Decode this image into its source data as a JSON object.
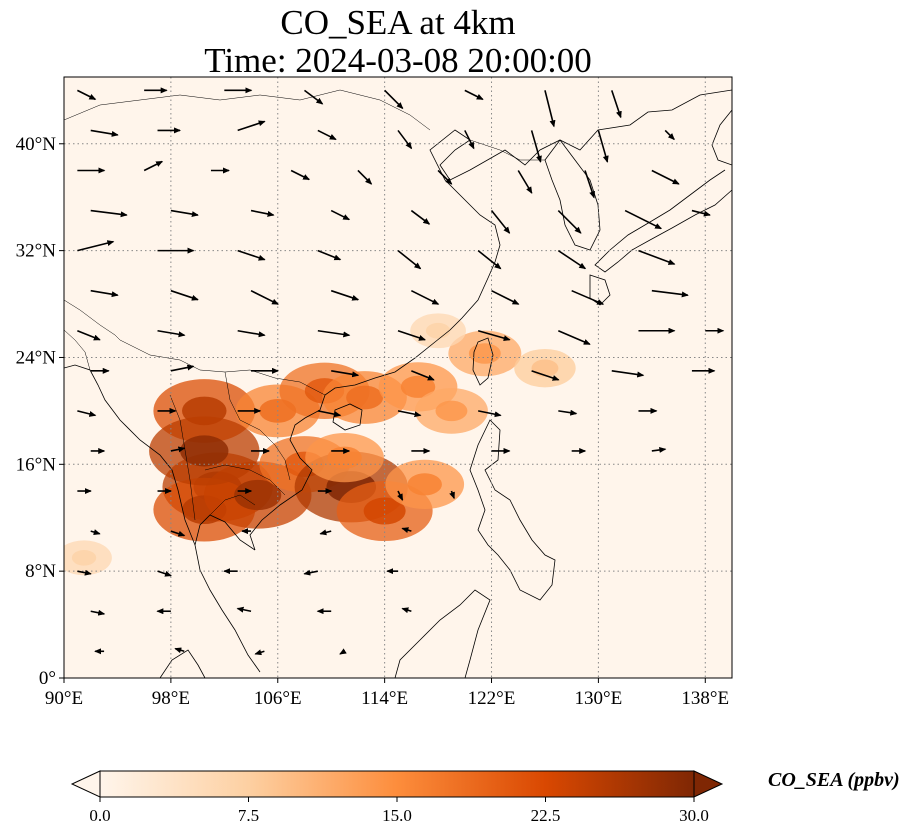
{
  "title": {
    "line1": "CO_SEA at 4km",
    "line2": "Time: 2024-03-08 20:00:00"
  },
  "map": {
    "extent": {
      "lon": [
        90,
        140
      ],
      "lat": [
        0,
        45
      ]
    },
    "lon_ticks": [
      {
        "value": 90,
        "label": "90°E"
      },
      {
        "value": 98,
        "label": "98°E"
      },
      {
        "value": 106,
        "label": "106°E"
      },
      {
        "value": 114,
        "label": "114°E"
      },
      {
        "value": 122,
        "label": "122°E"
      },
      {
        "value": 130,
        "label": "130°E"
      },
      {
        "value": 138,
        "label": "138°E"
      }
    ],
    "lat_ticks": [
      {
        "value": 0,
        "label": "0°"
      },
      {
        "value": 8,
        "label": "8°N"
      },
      {
        "value": 16,
        "label": "16°N"
      },
      {
        "value": 24,
        "label": "24°N"
      },
      {
        "value": 32,
        "label": "32°N"
      },
      {
        "value": 40,
        "label": "40°N"
      }
    ],
    "gridlines": true,
    "background_color": "#fff5eb"
  },
  "chart_data": {
    "type": "heatmap",
    "variable": "CO_SEA",
    "level": "4km",
    "time": "2024-03-08 20:00:00",
    "colorbar": {
      "label": "CO_SEA (ppbv)",
      "min": 0.0,
      "max": 30.0,
      "ticks": [
        "0.0",
        "7.5",
        "15.0",
        "22.5",
        "30.0"
      ],
      "colormap": [
        "#fff5eb",
        "#fdd0a2",
        "#fd8d3c",
        "#d94801",
        "#7f2704"
      ],
      "extend": "both"
    },
    "plumes": [
      {
        "lon": 101.5,
        "lat": 14.3,
        "value": 25
      },
      {
        "lon": 100.5,
        "lat": 12.6,
        "value": 22
      },
      {
        "lon": 104.5,
        "lat": 13.7,
        "value": 24
      },
      {
        "lon": 108.0,
        "lat": 16.0,
        "value": 18
      },
      {
        "lon": 111.5,
        "lat": 14.3,
        "value": 26
      },
      {
        "lon": 114.0,
        "lat": 12.5,
        "value": 20
      },
      {
        "lon": 111.0,
        "lat": 16.5,
        "value": 14
      },
      {
        "lon": 100.5,
        "lat": 20.0,
        "value": 22
      },
      {
        "lon": 100.5,
        "lat": 17.0,
        "value": 25
      },
      {
        "lon": 106.0,
        "lat": 20.0,
        "value": 16
      },
      {
        "lon": 109.5,
        "lat": 21.5,
        "value": 18
      },
      {
        "lon": 112.5,
        "lat": 21.0,
        "value": 16
      },
      {
        "lon": 116.5,
        "lat": 21.8,
        "value": 14
      },
      {
        "lon": 119.0,
        "lat": 20.0,
        "value": 12
      },
      {
        "lon": 121.5,
        "lat": 24.3,
        "value": 12
      },
      {
        "lon": 126.0,
        "lat": 23.2,
        "value": 8
      },
      {
        "lon": 117.0,
        "lat": 14.5,
        "value": 14
      },
      {
        "lon": 91.5,
        "lat": 9.0,
        "value": 6
      },
      {
        "lon": 118.0,
        "lat": 26.0,
        "value": 6
      }
    ],
    "wind_vectors": [
      {
        "lon": 91,
        "lat": 44,
        "u": 2,
        "v": -1
      },
      {
        "lon": 96,
        "lat": 44,
        "u": 2.5,
        "v": 0
      },
      {
        "lon": 102,
        "lat": 44,
        "u": 3,
        "v": 0
      },
      {
        "lon": 108,
        "lat": 44,
        "u": 2,
        "v": -1.5
      },
      {
        "lon": 114,
        "lat": 44,
        "u": 2,
        "v": -2
      },
      {
        "lon": 120,
        "lat": 44,
        "u": 2,
        "v": -1
      },
      {
        "lon": 126,
        "lat": 44,
        "u": 1,
        "v": -4
      },
      {
        "lon": 131,
        "lat": 44,
        "u": 1,
        "v": -3
      },
      {
        "lon": 92,
        "lat": 41,
        "u": 3,
        "v": -0.5
      },
      {
        "lon": 97,
        "lat": 41,
        "u": 2.5,
        "v": 0
      },
      {
        "lon": 103,
        "lat": 41,
        "u": 3,
        "v": 1
      },
      {
        "lon": 109,
        "lat": 41,
        "u": 2,
        "v": -1
      },
      {
        "lon": 115,
        "lat": 41,
        "u": 1.5,
        "v": -2
      },
      {
        "lon": 120,
        "lat": 41,
        "u": 1,
        "v": -2
      },
      {
        "lon": 125,
        "lat": 41,
        "u": 1,
        "v": -3.5
      },
      {
        "lon": 130,
        "lat": 41,
        "u": 1,
        "v": -3.5
      },
      {
        "lon": 135,
        "lat": 41,
        "u": 1,
        "v": -1
      },
      {
        "lon": 91,
        "lat": 38,
        "u": 3,
        "v": 0
      },
      {
        "lon": 96,
        "lat": 38,
        "u": 2,
        "v": 1
      },
      {
        "lon": 101,
        "lat": 38,
        "u": 2,
        "v": 0
      },
      {
        "lon": 107,
        "lat": 38,
        "u": 2,
        "v": -1
      },
      {
        "lon": 112,
        "lat": 38,
        "u": 1.5,
        "v": -1.5
      },
      {
        "lon": 118,
        "lat": 38,
        "u": 1.5,
        "v": -1.5
      },
      {
        "lon": 124,
        "lat": 38,
        "u": 1.5,
        "v": -2.5
      },
      {
        "lon": 129,
        "lat": 38,
        "u": 1,
        "v": -3
      },
      {
        "lon": 134,
        "lat": 38,
        "u": 3,
        "v": -1.5
      },
      {
        "lon": 92,
        "lat": 35,
        "u": 4,
        "v": -0.5
      },
      {
        "lon": 98,
        "lat": 35,
        "u": 3,
        "v": -0.5
      },
      {
        "lon": 104,
        "lat": 35,
        "u": 2.5,
        "v": -0.5
      },
      {
        "lon": 110,
        "lat": 35,
        "u": 2,
        "v": -1
      },
      {
        "lon": 116,
        "lat": 35,
        "u": 2,
        "v": -1.5
      },
      {
        "lon": 122,
        "lat": 35,
        "u": 2,
        "v": -2.5
      },
      {
        "lon": 127,
        "lat": 35,
        "u": 2.5,
        "v": -2.5
      },
      {
        "lon": 132,
        "lat": 35,
        "u": 4,
        "v": -2
      },
      {
        "lon": 137,
        "lat": 35,
        "u": 2,
        "v": -0.5
      },
      {
        "lon": 91,
        "lat": 32,
        "u": 4,
        "v": 1
      },
      {
        "lon": 97,
        "lat": 32,
        "u": 4,
        "v": 0
      },
      {
        "lon": 103,
        "lat": 32,
        "u": 3,
        "v": -1
      },
      {
        "lon": 109,
        "lat": 32,
        "u": 2.5,
        "v": -1
      },
      {
        "lon": 115,
        "lat": 32,
        "u": 2.5,
        "v": -2
      },
      {
        "lon": 121,
        "lat": 32,
        "u": 2.5,
        "v": -2
      },
      {
        "lon": 127,
        "lat": 32,
        "u": 3,
        "v": -2
      },
      {
        "lon": 133,
        "lat": 32,
        "u": 4,
        "v": -1.5
      },
      {
        "lon": 92,
        "lat": 29,
        "u": 3,
        "v": -0.5
      },
      {
        "lon": 98,
        "lat": 29,
        "u": 3,
        "v": -1
      },
      {
        "lon": 104,
        "lat": 29,
        "u": 3,
        "v": -1.5
      },
      {
        "lon": 110,
        "lat": 29,
        "u": 3,
        "v": -1
      },
      {
        "lon": 116,
        "lat": 29,
        "u": 3,
        "v": -1.5
      },
      {
        "lon": 122,
        "lat": 29,
        "u": 3,
        "v": -1.5
      },
      {
        "lon": 128,
        "lat": 29,
        "u": 3.5,
        "v": -1.5
      },
      {
        "lon": 134,
        "lat": 29,
        "u": 4,
        "v": -0.5
      },
      {
        "lon": 91,
        "lat": 26,
        "u": 2.5,
        "v": -1
      },
      {
        "lon": 97,
        "lat": 26,
        "u": 3,
        "v": -0.5
      },
      {
        "lon": 103,
        "lat": 26,
        "u": 3,
        "v": -0.5
      },
      {
        "lon": 109,
        "lat": 26,
        "u": 3.5,
        "v": -0.5
      },
      {
        "lon": 115,
        "lat": 26,
        "u": 3,
        "v": -1
      },
      {
        "lon": 121,
        "lat": 26,
        "u": 3.5,
        "v": -1
      },
      {
        "lon": 127,
        "lat": 26,
        "u": 3.5,
        "v": -1.5
      },
      {
        "lon": 133,
        "lat": 26,
        "u": 4,
        "v": 0
      },
      {
        "lon": 138,
        "lat": 26,
        "u": 2,
        "v": 0
      },
      {
        "lon": 92,
        "lat": 23,
        "u": 2,
        "v": 0
      },
      {
        "lon": 98,
        "lat": 23,
        "u": 2.5,
        "v": 0.5
      },
      {
        "lon": 104,
        "lat": 23,
        "u": 3,
        "v": 0
      },
      {
        "lon": 110,
        "lat": 23,
        "u": 3,
        "v": -0.5
      },
      {
        "lon": 116,
        "lat": 23,
        "u": 2.5,
        "v": -1
      },
      {
        "lon": 125,
        "lat": 23,
        "u": 3,
        "v": -1
      },
      {
        "lon": 131,
        "lat": 23,
        "u": 3.5,
        "v": -0.5
      },
      {
        "lon": 137,
        "lat": 23,
        "u": 2.5,
        "v": 0
      },
      {
        "lon": 91,
        "lat": 20,
        "u": 2,
        "v": -0.5
      },
      {
        "lon": 97,
        "lat": 20,
        "u": 2,
        "v": 0
      },
      {
        "lon": 103,
        "lat": 20,
        "u": 2.5,
        "v": 0
      },
      {
        "lon": 109,
        "lat": 20,
        "u": 2.5,
        "v": -0.5
      },
      {
        "lon": 115,
        "lat": 20,
        "u": 2.5,
        "v": -0.5
      },
      {
        "lon": 121,
        "lat": 20,
        "u": 2.5,
        "v": -0.5
      },
      {
        "lon": 127,
        "lat": 20,
        "u": 2,
        "v": -0.3
      },
      {
        "lon": 133,
        "lat": 20,
        "u": 2,
        "v": 0
      },
      {
        "lon": 92,
        "lat": 17,
        "u": 1.5,
        "v": 0
      },
      {
        "lon": 98,
        "lat": 17,
        "u": 1.5,
        "v": 0.3
      },
      {
        "lon": 104,
        "lat": 17,
        "u": 2,
        "v": 0
      },
      {
        "lon": 110,
        "lat": 17,
        "u": 2,
        "v": 0
      },
      {
        "lon": 116,
        "lat": 17,
        "u": 2,
        "v": 0
      },
      {
        "lon": 122,
        "lat": 17,
        "u": 2,
        "v": 0
      },
      {
        "lon": 128,
        "lat": 17,
        "u": 1.5,
        "v": 0
      },
      {
        "lon": 134,
        "lat": 17,
        "u": 1.5,
        "v": 0.2
      },
      {
        "lon": 91,
        "lat": 14,
        "u": 1.5,
        "v": 0
      },
      {
        "lon": 97,
        "lat": 14,
        "u": 1.5,
        "v": 0
      },
      {
        "lon": 103,
        "lat": 14,
        "u": 1.5,
        "v": 0
      },
      {
        "lon": 109,
        "lat": 14,
        "u": 1.5,
        "v": 0
      },
      {
        "lon": 115,
        "lat": 14,
        "u": 0.5,
        "v": -1
      },
      {
        "lon": 119,
        "lat": 14,
        "u": 0.3,
        "v": -0.8
      },
      {
        "lon": 92,
        "lat": 11,
        "u": 1,
        "v": -0.3
      },
      {
        "lon": 98,
        "lat": 11,
        "u": 1.5,
        "v": -0.5
      },
      {
        "lon": 104,
        "lat": 11,
        "u": -1,
        "v": 0
      },
      {
        "lon": 110,
        "lat": 11,
        "u": -1.2,
        "v": -0.3
      },
      {
        "lon": 116,
        "lat": 11,
        "u": -1,
        "v": 0.3
      },
      {
        "lon": 91,
        "lat": 8,
        "u": 1.5,
        "v": -0.3
      },
      {
        "lon": 97,
        "lat": 8,
        "u": 1.5,
        "v": -0.5
      },
      {
        "lon": 103,
        "lat": 8,
        "u": -1.5,
        "v": 0
      },
      {
        "lon": 109,
        "lat": 8,
        "u": -1.5,
        "v": -0.3
      },
      {
        "lon": 115,
        "lat": 8,
        "u": -1.2,
        "v": 0
      },
      {
        "lon": 92,
        "lat": 5,
        "u": 1.5,
        "v": -0.3
      },
      {
        "lon": 98,
        "lat": 5,
        "u": -1.5,
        "v": 0
      },
      {
        "lon": 104,
        "lat": 5,
        "u": -1.5,
        "v": 0.3
      },
      {
        "lon": 110,
        "lat": 5,
        "u": -1.5,
        "v": 0
      },
      {
        "lon": 116,
        "lat": 5,
        "u": -1,
        "v": 0.3
      },
      {
        "lon": 93,
        "lat": 2,
        "u": -1,
        "v": 0
      },
      {
        "lon": 99,
        "lat": 2,
        "u": -1,
        "v": 0.3
      },
      {
        "lon": 105,
        "lat": 2,
        "u": -1,
        "v": -0.3
      },
      {
        "lon": 111,
        "lat": 2,
        "u": -0.5,
        "v": -0.3
      }
    ]
  }
}
